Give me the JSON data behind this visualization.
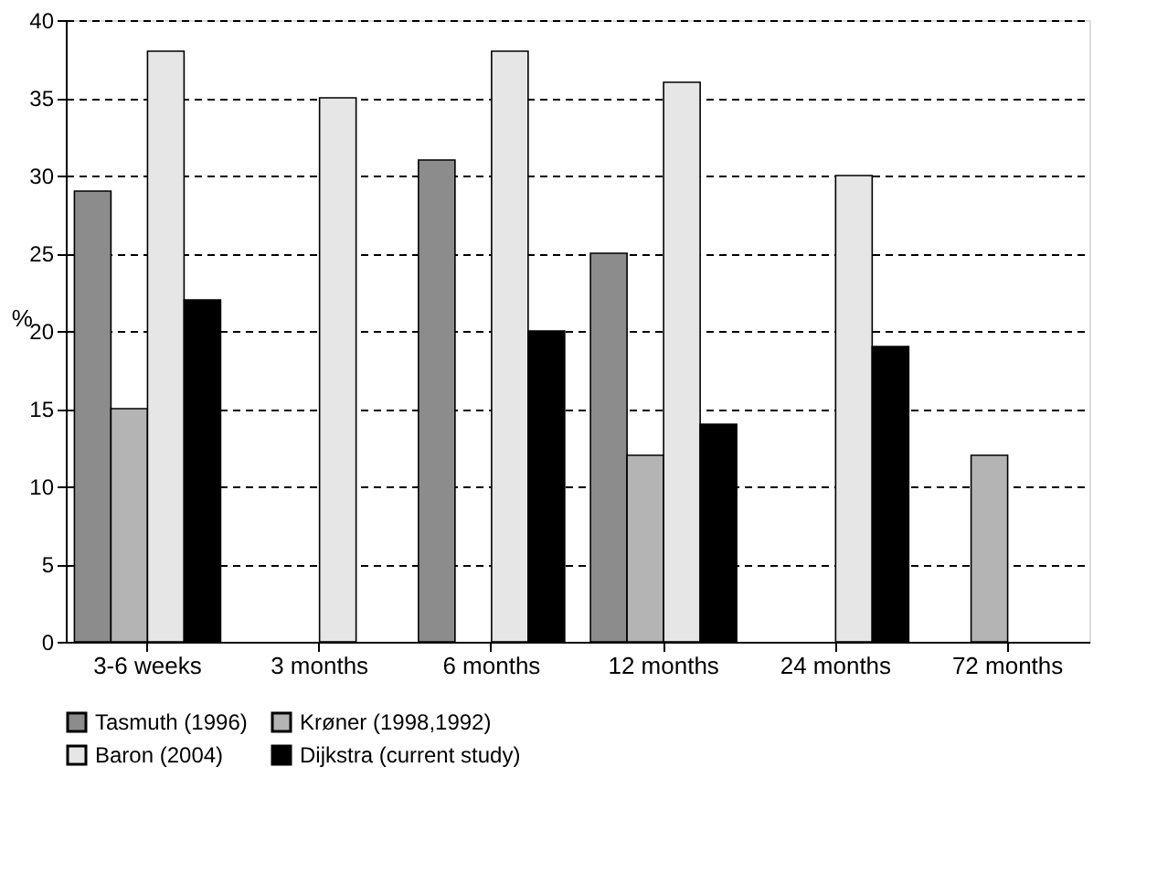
{
  "chart_data": {
    "type": "bar",
    "ylabel": "%",
    "categories": [
      "3-6 weeks",
      "3 months",
      "6 months",
      "12 months",
      "24 months",
      "72 months"
    ],
    "series": [
      {
        "name": "Tasmuth (1996)",
        "color": "#8c8c8c",
        "values": [
          29,
          null,
          31,
          25,
          null,
          null
        ]
      },
      {
        "name": "Krøner (1998,1992)",
        "color": "#b4b4b4",
        "values": [
          15,
          null,
          null,
          12,
          null,
          12
        ]
      },
      {
        "name": "Baron (2004)",
        "color": "#e6e6e6",
        "values": [
          38,
          35,
          38,
          36,
          30,
          null
        ]
      },
      {
        "name": "Dijkstra (current study)",
        "color": "#000000",
        "values": [
          22,
          null,
          20,
          14,
          19,
          null
        ]
      }
    ],
    "ylim": [
      0,
      40
    ],
    "yticks": [
      0,
      5,
      10,
      15,
      20,
      25,
      30,
      35,
      40
    ],
    "grid": "y",
    "legend": "bottom"
  }
}
